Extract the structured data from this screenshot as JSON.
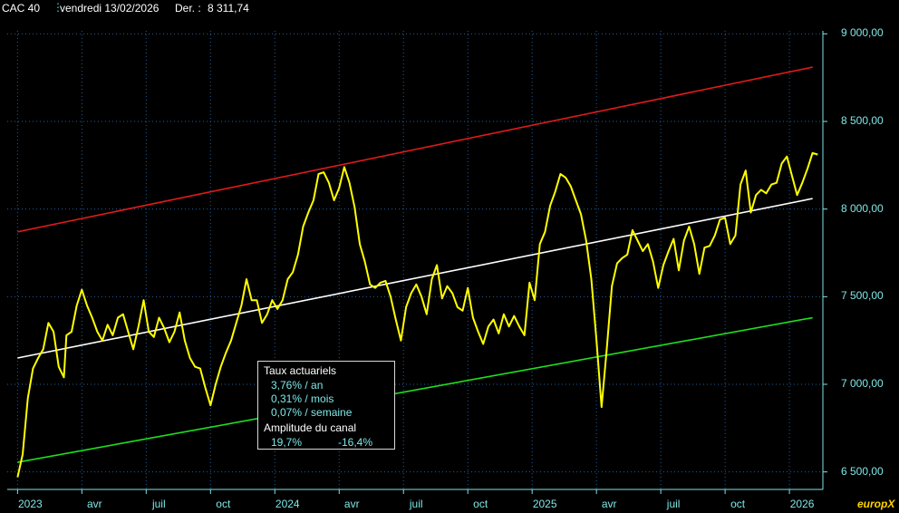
{
  "header": {
    "symbol": "CAC 40",
    "date": "vendredi 13/02/2026",
    "last_label": "Der. :",
    "last_value": "8 311,74"
  },
  "brand": "europX",
  "colors": {
    "background": "#000000",
    "price": "#ffff00",
    "upper_channel": "#e01a1a",
    "mid_channel": "#ffffff",
    "lower_channel": "#1ee01e",
    "axis_text": "#7fe6e6",
    "grid": "#1f5fa0"
  },
  "infobox": {
    "title": "Taux actuariels",
    "rate_year": "3,76% / an",
    "rate_month": "0,31% / mois",
    "rate_week": "0,07% / semaine",
    "amplitude_title": "Amplitude du canal",
    "amplitude_up": "19,7%",
    "amplitude_down": "-16,4%"
  },
  "chart_data": {
    "type": "line",
    "title": "CAC 40",
    "ylim": [
      6400,
      9100
    ],
    "yticks": [
      "9 000,00",
      "8 500,00",
      "8 000,00",
      "7 500,00",
      "7 000,00",
      "6 500,00"
    ],
    "ytick_values": [
      9000,
      8500,
      8000,
      7500,
      7000,
      6500
    ],
    "xticks": [
      "2023",
      "avr",
      "juil",
      "oct",
      "2024",
      "avr",
      "juil",
      "oct",
      "2025",
      "avr",
      "juil",
      "oct",
      "2026"
    ],
    "xtick_values": [
      2023.0,
      2023.25,
      2023.5,
      2023.75,
      2024.0,
      2024.25,
      2024.5,
      2024.75,
      2025.0,
      2025.25,
      2025.5,
      2025.75,
      2026.0
    ],
    "xlim": [
      2022.96,
      2026.13
    ],
    "grid": true,
    "series": [
      {
        "x": [
          2023.0,
          2023.02,
          2023.04,
          2023.06,
          2023.08,
          2023.1,
          2023.12,
          2023.14,
          2023.16,
          2023.18,
          2023.19,
          2023.21,
          2023.23,
          2023.25,
          2023.27,
          2023.29,
          2023.31,
          2023.33,
          2023.35,
          2023.37,
          2023.39,
          2023.41,
          2023.43,
          2023.45,
          2023.47,
          2023.49,
          2023.51,
          2023.53,
          2023.55,
          2023.57,
          2023.59,
          2023.61,
          2023.63,
          2023.65,
          2023.67,
          2023.69,
          2023.71,
          2023.73,
          2023.75,
          2023.77,
          2023.79,
          2023.81,
          2023.83,
          2023.85,
          2023.87,
          2023.89,
          2023.91,
          2023.93,
          2023.95,
          2023.97,
          2023.99,
          2024.01,
          2024.03,
          2024.05,
          2024.07,
          2024.09,
          2024.11,
          2024.13,
          2024.15,
          2024.17,
          2024.19,
          2024.21,
          2024.23,
          2024.25,
          2024.27,
          2024.29,
          2024.31,
          2024.33,
          2024.35,
          2024.37,
          2024.39,
          2024.41,
          2024.43,
          2024.45,
          2024.47,
          2024.49,
          2024.51,
          2024.53,
          2024.55,
          2024.57,
          2024.59,
          2024.61,
          2024.63,
          2024.65,
          2024.67,
          2024.69,
          2024.71,
          2024.73,
          2024.75,
          2024.77,
          2024.79,
          2024.81,
          2024.83,
          2024.85,
          2024.87,
          2024.89,
          2024.91,
          2024.93,
          2024.95,
          2024.97,
          2024.99,
          2025.01,
          2025.03,
          2025.05,
          2025.07,
          2025.09,
          2025.11,
          2025.13,
          2025.15,
          2025.17,
          2025.19,
          2025.21,
          2025.23,
          2025.25,
          2025.27,
          2025.29,
          2025.31,
          2025.33,
          2025.35,
          2025.37,
          2025.39,
          2025.41,
          2025.43,
          2025.45,
          2025.47,
          2025.49,
          2025.51,
          2025.53,
          2025.55,
          2025.57,
          2025.59,
          2025.61,
          2025.63,
          2025.65,
          2025.67,
          2025.69,
          2025.71,
          2025.73,
          2025.75,
          2025.77,
          2025.79,
          2025.81,
          2025.83,
          2025.85,
          2025.87,
          2025.89,
          2025.91,
          2025.93,
          2025.95,
          2025.97,
          2025.99,
          2026.01,
          2026.03,
          2026.05,
          2026.07,
          2026.09,
          2026.11
        ],
        "values": [
          6470,
          6600,
          6920,
          7090,
          7150,
          7200,
          7350,
          7300,
          7100,
          7040,
          7280,
          7300,
          7450,
          7540,
          7450,
          7380,
          7300,
          7250,
          7340,
          7280,
          7380,
          7400,
          7300,
          7200,
          7330,
          7480,
          7300,
          7270,
          7380,
          7320,
          7240,
          7300,
          7410,
          7250,
          7150,
          7100,
          7090,
          6980,
          6880,
          7000,
          7100,
          7180,
          7250,
          7350,
          7450,
          7600,
          7480,
          7480,
          7350,
          7400,
          7480,
          7430,
          7480,
          7600,
          7640,
          7740,
          7900,
          7980,
          8050,
          8200,
          8210,
          8150,
          8050,
          8120,
          8240,
          8150,
          8010,
          7800,
          7700,
          7570,
          7550,
          7580,
          7590,
          7500,
          7370,
          7250,
          7440,
          7520,
          7570,
          7500,
          7400,
          7600,
          7680,
          7490,
          7560,
          7520,
          7440,
          7420,
          7550,
          7380,
          7300,
          7230,
          7330,
          7370,
          7290,
          7400,
          7330,
          7390,
          7330,
          7280,
          7580,
          7480,
          7800,
          7870,
          8020,
          8100,
          8200,
          8180,
          8130,
          8050,
          7970,
          7820,
          7600,
          7250,
          6870,
          7200,
          7560,
          7690,
          7720,
          7740,
          7880,
          7820,
          7760,
          7800,
          7700,
          7550,
          7680,
          7760,
          7830,
          7650,
          7820,
          7900,
          7800,
          7630,
          7780,
          7790,
          7850,
          7940,
          7950,
          7800,
          7850,
          8140,
          8220,
          7980,
          8080,
          8110,
          8090,
          8140,
          8150,
          8260,
          8300,
          8190,
          8080,
          8150,
          8230,
          8320,
          8311
        ]
      }
    ],
    "channel": {
      "upper": {
        "x": [
          2023.0,
          2026.09
        ],
        "y": [
          7870,
          8810
        ]
      },
      "middle": {
        "x": [
          2023.0,
          2026.09
        ],
        "y": [
          7150,
          8060
        ]
      },
      "lower": {
        "x": [
          2023.0,
          2026.09
        ],
        "y": [
          6555,
          7380
        ]
      }
    }
  }
}
